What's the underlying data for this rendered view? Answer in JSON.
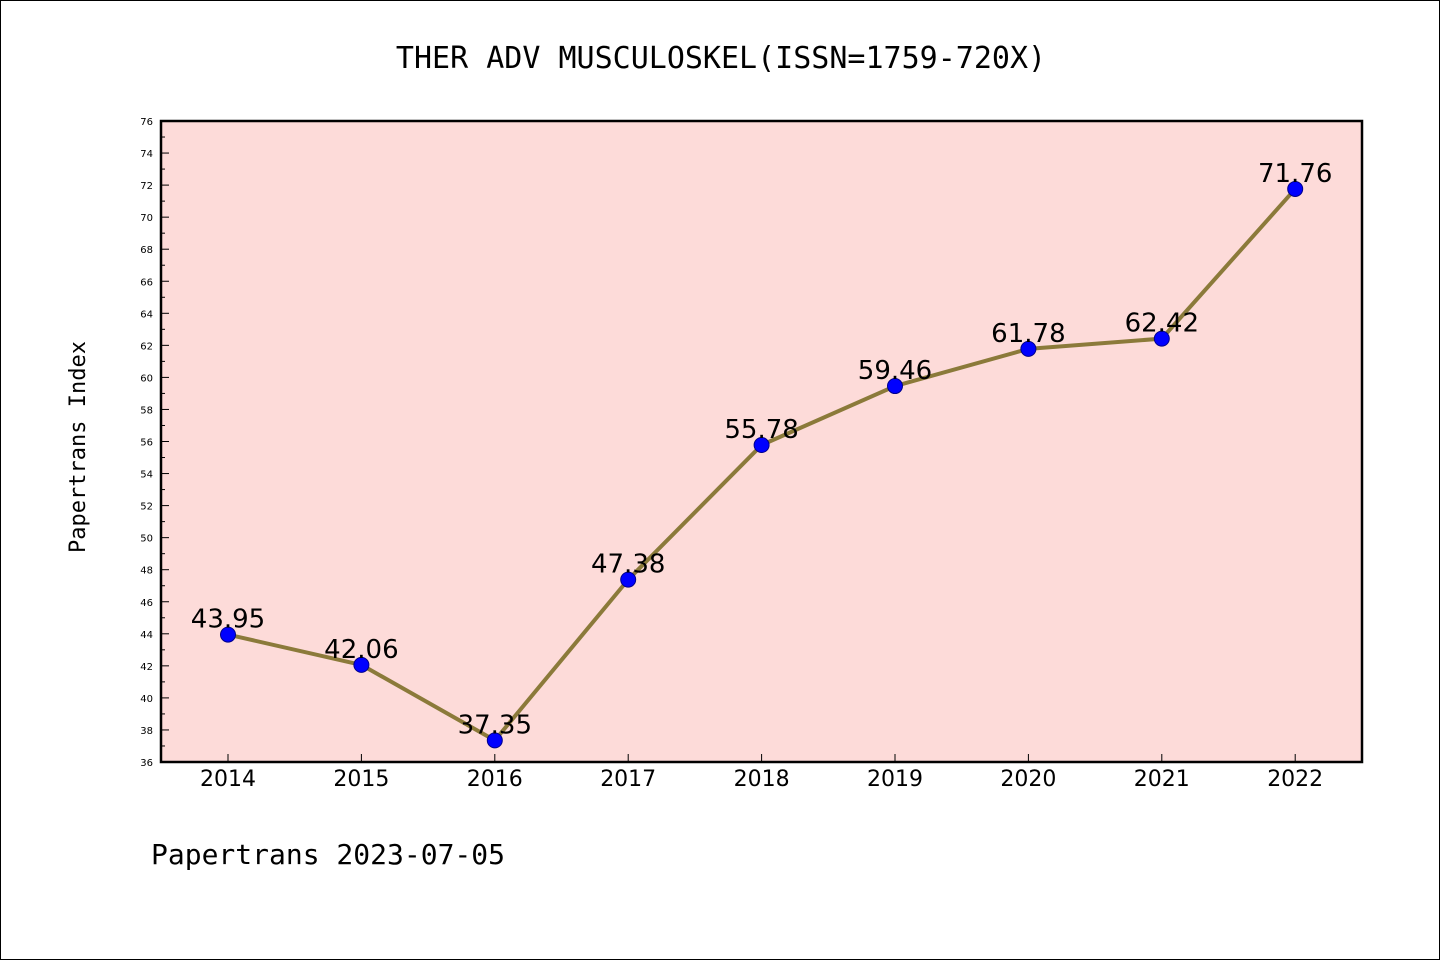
{
  "chart_data": {
    "type": "line",
    "title": "THER ADV MUSCULOSKEL(ISSN=1759-720X)",
    "ylabel": "Papertrans Index",
    "xlabel": "",
    "footer": "Papertrans 2023-07-05",
    "categories": [
      "2014",
      "2015",
      "2016",
      "2017",
      "2018",
      "2019",
      "2020",
      "2021",
      "2022"
    ],
    "series": [
      {
        "values": [
          43.95,
          42.06,
          37.35,
          47.38,
          55.78,
          59.46,
          61.78,
          62.42,
          71.76
        ],
        "labels": [
          "43.95",
          "42.06",
          "37.35",
          "47.38",
          "55.78",
          "59.46",
          "61.78",
          "62.42",
          "71.76"
        ],
        "line_color": "#8b7a3a",
        "marker_color": "#0000ff"
      }
    ],
    "ylim": [
      36,
      76
    ],
    "ytick_step": 2,
    "grid": false,
    "plot_background": "#fddbd9"
  }
}
